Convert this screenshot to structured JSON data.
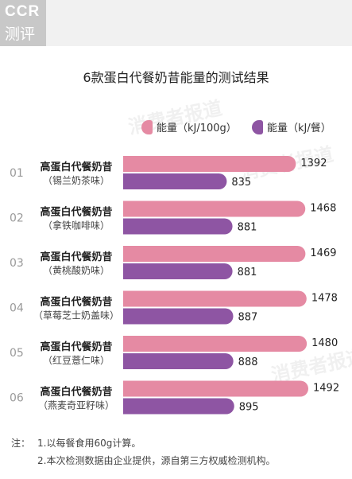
{
  "logo": {
    "line1": "CCR",
    "line2": "测评"
  },
  "watermark": "消费者报道",
  "chart_data": {
    "type": "bar",
    "title": "6款蛋白代餐奶昔能量的测试结果",
    "categories": [
      {
        "index": "01",
        "name": "高蛋白代餐奶昔",
        "flavor": "（锡兰奶茶味）"
      },
      {
        "index": "02",
        "name": "高蛋白代餐奶昔",
        "flavor": "（拿铁咖啡味）"
      },
      {
        "index": "03",
        "name": "高蛋白代餐奶昔",
        "flavor": "（黄桃酸奶味）"
      },
      {
        "index": "04",
        "name": "高蛋白代餐奶昔",
        "flavor": "（草莓芝士奶盖味）"
      },
      {
        "index": "05",
        "name": "高蛋白代餐奶昔",
        "flavor": "（红豆薏仁味）"
      },
      {
        "index": "06",
        "name": "高蛋白代餐奶昔",
        "flavor": "（燕麦奇亚籽味）"
      }
    ],
    "series": [
      {
        "name": "能量（kJ/100g）",
        "color": "#e58aa3",
        "values": [
          1392,
          1468,
          1469,
          1478,
          1480,
          1492
        ]
      },
      {
        "name": "能量（kJ/餐）",
        "color": "#8e55a3",
        "values": [
          835,
          881,
          881,
          887,
          888,
          895
        ]
      }
    ],
    "legend_position": "top-right",
    "grid": false
  },
  "notes": {
    "prefix": "注：",
    "lines": [
      "1.以每餐食用60g计算。",
      "2.本次检测数据由企业提供，源自第三方权威检测机构。"
    ]
  }
}
